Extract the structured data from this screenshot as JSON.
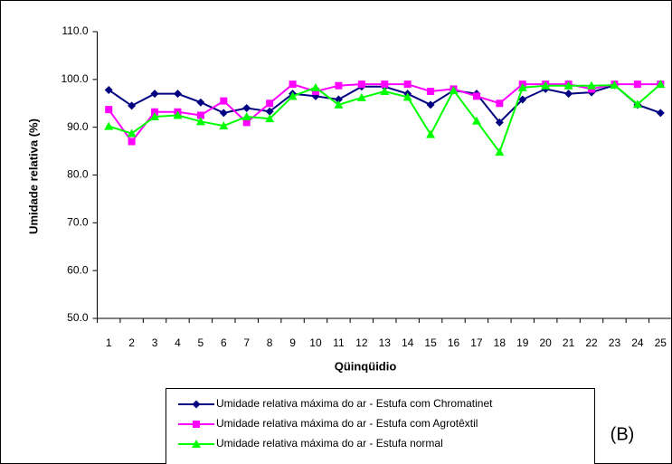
{
  "chart_data": {
    "type": "line",
    "ylabel": "Umidade relativa (%)",
    "xlabel": "Qüinqüidio",
    "annotation": "(B)",
    "categories": [
      "1",
      "2",
      "3",
      "4",
      "5",
      "6",
      "7",
      "8",
      "9",
      "10",
      "11",
      "12",
      "13",
      "14",
      "15",
      "16",
      "17",
      "18",
      "19",
      "20",
      "21",
      "22",
      "23",
      "24",
      "25"
    ],
    "series": [
      {
        "name": "Umidade relativa máxima do ar - Estufa com Chromatinet",
        "color": "#000080",
        "marker": "diamond",
        "values": [
          97.8,
          94.5,
          97,
          97,
          95.2,
          93,
          94,
          93.3,
          97,
          96.5,
          95.8,
          98.5,
          98.5,
          97,
          94.7,
          97.7,
          97,
          91,
          95.8,
          98,
          97,
          97.3,
          98.8,
          94.7,
          93
        ]
      },
      {
        "name": "Umidade relativa máxima do ar - Estufa com Agrotêxtil",
        "color": "#ff00ff",
        "marker": "square",
        "values": [
          93.7,
          87,
          93.2,
          93.2,
          92.5,
          95.5,
          91,
          95,
          99,
          97.5,
          98.7,
          99,
          99,
          99,
          97.5,
          98,
          96.5,
          95,
          99,
          99,
          99,
          98,
          99,
          99,
          99
        ]
      },
      {
        "name": "Umidade relativa máxima do ar - Estufa normal",
        "color": "#00ff00",
        "marker": "triangle",
        "values": [
          90.2,
          88.7,
          92.2,
          92.5,
          91.2,
          90.3,
          92.2,
          91.8,
          96.5,
          98.3,
          94.7,
          96.2,
          97.5,
          96.3,
          88.5,
          97.7,
          91.3,
          84.8,
          98.3,
          98.7,
          98.7,
          98.7,
          98.8,
          94.8,
          99
        ]
      }
    ],
    "ylim": [
      50,
      110
    ],
    "yticks": [
      {
        "value": 50,
        "label": "50.0"
      },
      {
        "value": 60,
        "label": "60.0"
      },
      {
        "value": 70,
        "label": "70.0"
      },
      {
        "value": 80,
        "label": "80.0"
      },
      {
        "value": 90,
        "label": "90.0"
      },
      {
        "value": 100,
        "label": "100.0"
      },
      {
        "value": 110,
        "label": "110.0"
      }
    ],
    "grid": false,
    "legend": "bottom"
  }
}
